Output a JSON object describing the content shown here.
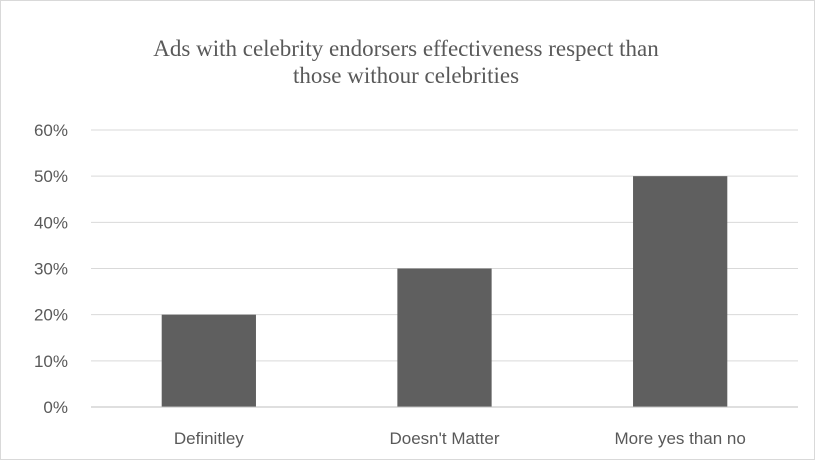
{
  "chart_data": {
    "type": "bar",
    "title_lines": [
      "Ads with celebrity endorsers effectiveness respect than",
      "those withour celebrities"
    ],
    "categories": [
      "Definitley",
      "Doesn't Matter",
      "More yes than no"
    ],
    "values": [
      0.2,
      0.3,
      0.5
    ],
    "ylim": [
      0,
      0.6
    ],
    "y_ticks": [
      0,
      0.1,
      0.2,
      0.3,
      0.4,
      0.5,
      0.6
    ],
    "y_tick_labels": [
      "0%",
      "10%",
      "20%",
      "30%",
      "40%",
      "50%",
      "60%"
    ],
    "bar_color": "#5f5f5f",
    "gridlines": true,
    "legend": "none"
  }
}
